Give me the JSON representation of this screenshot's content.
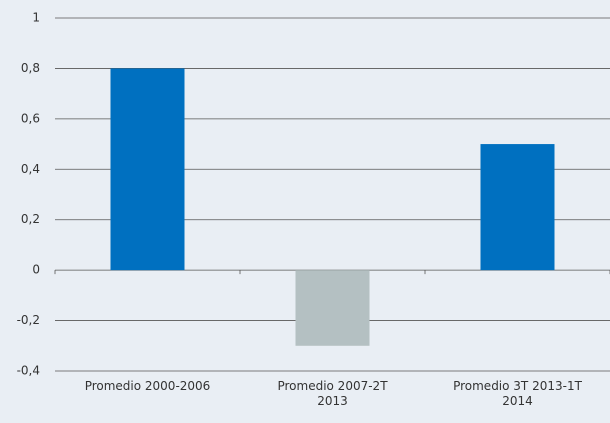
{
  "chart_data": {
    "type": "bar",
    "categories": [
      "Promedio 2000-2006",
      "Promedio 2007-2T 2013",
      "Promedio 3T 2013-1T 2014"
    ],
    "values": [
      0.8,
      -0.3,
      0.5
    ],
    "colors": [
      "#0070c0",
      "#b4c0c2",
      "#0070c0"
    ],
    "ylim": [
      -0.4,
      1
    ],
    "yticks": [
      {
        "value": -0.4,
        "label": "-0,4"
      },
      {
        "value": -0.2,
        "label": "-0,2"
      },
      0,
      {
        "value": 0.2,
        "label": "0,2"
      },
      {
        "value": 0.4,
        "label": "0,4"
      },
      {
        "value": 0.6,
        "label": "0,6"
      },
      {
        "value": 0.8,
        "label": "0,8"
      },
      1
    ],
    "grid": true
  }
}
